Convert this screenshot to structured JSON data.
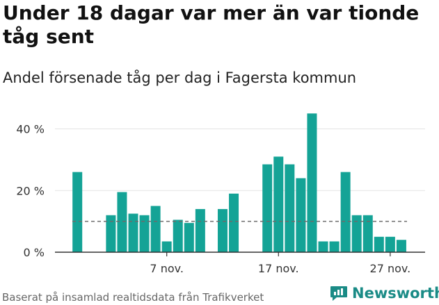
{
  "title": "Under 18 dagar var mer än var tionde tåg sent",
  "subtitle": "Andel försenade tåg per dag i Fagersta kommun",
  "source": "Baserat på insamlad realtidsdata från Trafikverket",
  "brand": {
    "name": "Newsworthy",
    "icon": "newsworthy-logo-icon"
  },
  "colors": {
    "bar": "#14a396",
    "reference_line": "#6b6b6b",
    "grid": "#e3e3e3",
    "axis": "#333333",
    "tick_text": "#333333",
    "brand": "#1a8b86"
  },
  "chart_data": {
    "type": "bar",
    "categories": [
      "2024-10-30",
      "2024-10-31",
      "2024-11-01",
      "2024-11-02",
      "2024-11-03",
      "2024-11-04",
      "2024-11-05",
      "2024-11-06",
      "2024-11-07",
      "2024-11-08",
      "2024-11-09",
      "2024-11-10",
      "2024-11-11",
      "2024-11-12",
      "2024-11-13",
      "2024-11-14",
      "2024-11-15",
      "2024-11-16",
      "2024-11-17",
      "2024-11-18",
      "2024-11-19",
      "2024-11-20",
      "2024-11-21",
      "2024-11-22",
      "2024-11-23",
      "2024-11-24",
      "2024-11-25",
      "2024-11-26",
      "2024-11-27",
      "2024-11-28",
      "2024-11-29",
      "2024-11-30"
    ],
    "values": [
      26,
      null,
      null,
      12,
      19.5,
      12.5,
      12,
      15,
      3.5,
      10.5,
      9.5,
      14,
      null,
      14,
      19,
      null,
      null,
      28.5,
      31,
      28.5,
      24,
      45,
      3.5,
      3.5,
      26,
      12,
      12,
      5,
      5,
      4,
      null,
      null
    ],
    "reference_value": 10,
    "reference_style": "dashed",
    "ylim": [
      0,
      48
    ],
    "yticks": [
      0,
      20,
      40
    ],
    "ytick_labels": [
      "0 %",
      "20 %",
      "40 %"
    ],
    "xticks": [
      "2024-11-07",
      "2024-11-17",
      "2024-11-27"
    ],
    "xtick_labels": [
      "7 nov.",
      "17 nov.",
      "27 nov."
    ],
    "grid": true
  }
}
